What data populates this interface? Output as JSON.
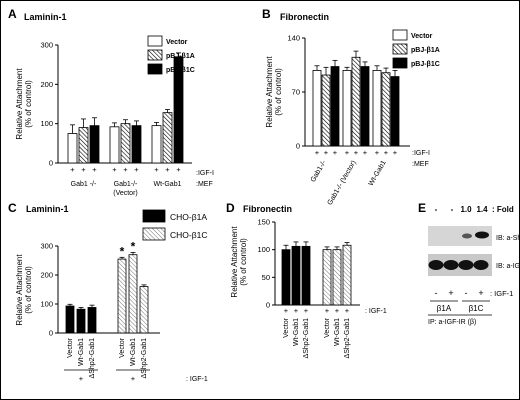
{
  "chart_data": [
    {
      "type": "bar",
      "panel": "A",
      "title": "Laminin-1",
      "ylabel": "Relative Attachment\n(% of control)",
      "ylim": [
        0,
        300
      ],
      "yticks": [
        "0",
        "100",
        "200",
        "300"
      ],
      "groups": [
        "Gab1 -/-",
        "Gab1-/-\n(Vector)",
        "Wt-Gab1"
      ],
      "series": [
        {
          "name": "Vector",
          "pattern": "white",
          "values": [
            75,
            92,
            95
          ],
          "errors": [
            22,
            10,
            8
          ]
        },
        {
          "name": "pBJ-β1A",
          "pattern": "hatch",
          "values": [
            90,
            100,
            128
          ],
          "errors": [
            22,
            10,
            8
          ]
        },
        {
          "name": "pBJ-β1C",
          "pattern": "black",
          "values": [
            95,
            95,
            270
          ],
          "errors": [
            20,
            12,
            10
          ]
        }
      ],
      "plus_row": "+",
      "row_labels": [
        ":IGF-I",
        ":MEF"
      ]
    },
    {
      "type": "bar",
      "panel": "B",
      "title": "Fibronectin",
      "ylabel": "Relative Attachment\n(% of control)",
      "ylim": [
        0,
        140
      ],
      "yticks": [
        "0",
        "70",
        "140"
      ],
      "groups": [
        "Gab1-/-",
        "Gab1-/- (Vector)",
        "Wt-Gab1"
      ],
      "series": [
        {
          "name": "Vector",
          "pattern": "white",
          "values": [
            98,
            98,
            98
          ],
          "errors": [
            6,
            4,
            6
          ]
        },
        {
          "name": "pBJ-β1A",
          "pattern": "hatch",
          "values": [
            92,
            115,
            95
          ],
          "errors": [
            10,
            8,
            6
          ]
        },
        {
          "name": "pBJ-β1C",
          "pattern": "black",
          "values": [
            103,
            103,
            90
          ],
          "errors": [
            8,
            6,
            8
          ]
        }
      ],
      "plus_row": "+",
      "row_labels": [
        ":IGF-I",
        ":MEF"
      ]
    },
    {
      "type": "bar",
      "panel": "C",
      "title": "Laminin-1",
      "ylabel": "Relative Attachment\n(% of control)",
      "ylim": [
        0,
        300
      ],
      "yticks": [
        "0",
        "100",
        "200",
        "300"
      ],
      "categories": [
        "Vector",
        "Wt-Gab1",
        "ΔShp2-Gab1"
      ],
      "series": [
        {
          "name": "CHO-β1A",
          "pattern": "black",
          "values": [
            93,
            82,
            88
          ],
          "errors": [
            6,
            6,
            8
          ]
        },
        {
          "name": "CHO-β1C",
          "pattern": "hatch",
          "values": [
            255,
            270,
            160
          ],
          "errors": [
            6,
            8,
            6
          ]
        }
      ],
      "annotations": [
        "*",
        "*"
      ],
      "plus_row": "+",
      "row_labels": [
        ": IGF-1"
      ]
    },
    {
      "type": "bar",
      "panel": "D",
      "title": "Fibronectin",
      "ylabel": "Relative Attachment\n(% of control)",
      "ylim": [
        0,
        150
      ],
      "yticks": [
        "0",
        "50",
        "100",
        "150"
      ],
      "categories": [
        "Vector",
        "Wt-Gab1",
        "ΔShp2-Gab1"
      ],
      "series": [
        {
          "name": "CHO-β1A",
          "pattern": "black",
          "values": [
            100,
            106,
            106
          ],
          "errors": [
            8,
            8,
            8
          ]
        },
        {
          "name": "CHO-β1C",
          "pattern": "hatch",
          "values": [
            100,
            100,
            108
          ],
          "errors": [
            5,
            5,
            5
          ]
        }
      ],
      "plus_row": "+",
      "row_labels": [
        ": IGF-1"
      ]
    }
  ],
  "panelE": {
    "label": "E",
    "header": [
      "-",
      "-",
      "1.0",
      "1.4",
      ": Fold"
    ],
    "blot1_label": "IB: a-Shp2",
    "blot2_label": "IB: a-IGF-IR (β)",
    "lanes": [
      "-",
      "+",
      "-",
      "+"
    ],
    "igf_label": ": IGF-1",
    "groups": [
      "β1A",
      "β1C"
    ],
    "ip_label": "IP: a-IGF-IR (β)"
  },
  "labels": {
    "A": "A",
    "B": "B",
    "C": "C",
    "D": "D"
  }
}
